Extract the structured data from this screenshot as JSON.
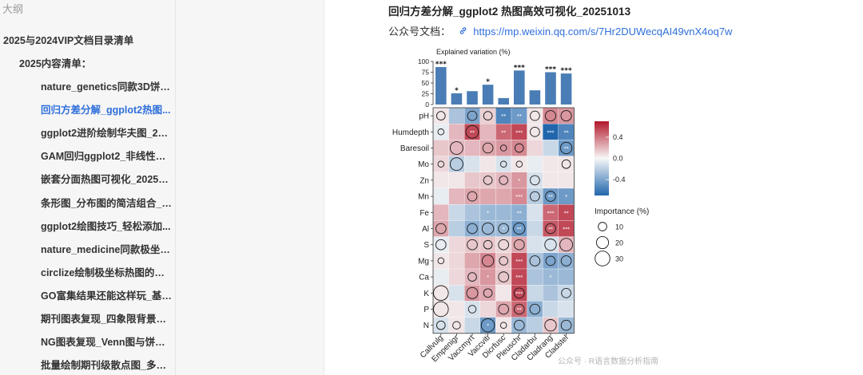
{
  "sidebar": {
    "outline_label": "大纲",
    "section": "2025与2024VIP文档目录清单",
    "subsection": "2025内容清单：",
    "items": [
      "nature_genetics同款3D饼图...",
      "回归方差分解_ggplot2热图...",
      "ggplot2进阶绘制华夫图_202...",
      "GAM回归ggplot2_非线性趋...",
      "嵌套分面热图可视化_202510...",
      "条形图_分布图的简洁组合_2...",
      "ggplot2绘图技巧_轻松添加...",
      "nature_medicine同款极坐标...",
      "circlize绘制极坐标热图的通...",
      "GO富集结果还能这样玩_基因...",
      "期刊图表复现_四象限背景散...",
      "NG图表复现_Venn图与饼图...",
      "批量绘制期刊级散点图_多元..."
    ],
    "active_index": 1
  },
  "doc": {
    "title": "回归方差分解_ggplot2 热图高效可视化_20251013",
    "link_label": "公众号文档：",
    "link_icon": "link-icon",
    "link_url": "https://mp.weixin.qq.com/s/7Hr2DUWecqAI49vnX4oq7w",
    "watermark": "公众号 · R语言数据分析指南"
  },
  "colors": {
    "accent": "#2f6fdb",
    "bar": "#4a7db5",
    "neg": "#2166ac",
    "pos": "#b2182b"
  },
  "chart_data": {
    "type": "heatmap",
    "bar_title": "Explained variation (%)",
    "bar_ylim": [
      0,
      100
    ],
    "bar_yticks": [
      0,
      25,
      50,
      75,
      100
    ],
    "species": [
      "Callvulg",
      "Empenigr",
      "Vaccmyrt",
      "Vaccviti",
      "Dicrfusc",
      "Pleuschr",
      "Cladarbu",
      "Cladrang",
      "Cladstel"
    ],
    "bar_values": [
      87,
      26,
      31,
      46,
      15,
      79,
      33,
      75,
      72
    ],
    "bar_sig": [
      "***",
      "*",
      "",
      "*",
      "",
      "***",
      "",
      "***",
      "***"
    ],
    "variables": [
      "pH",
      "Humdepth",
      "Baresoil",
      "Mo",
      "Zn",
      "Mn",
      "Fe",
      "Al",
      "S",
      "Mg",
      "Ca",
      "K",
      "P",
      "N"
    ],
    "correlation": [
      [
        0.05,
        -0.25,
        -0.4,
        0.12,
        -0.55,
        -0.45,
        0.05,
        0.35,
        0.3
      ],
      [
        -0.05,
        0.2,
        0.55,
        0.2,
        0.45,
        0.55,
        0.05,
        -0.7,
        -0.55
      ],
      [
        0.15,
        0.2,
        0.2,
        0.25,
        0.3,
        0.35,
        0.1,
        -0.15,
        -0.45
      ],
      [
        0.1,
        -0.2,
        -0.1,
        0.05,
        -0.1,
        0.05,
        -0.05,
        0.05,
        0.05
      ],
      [
        0.05,
        0.05,
        0.15,
        0.15,
        0.2,
        0.3,
        -0.1,
        0.05,
        0.05
      ],
      [
        -0.05,
        0.2,
        0.25,
        0.25,
        0.25,
        0.35,
        -0.2,
        -0.45,
        -0.45
      ],
      [
        0.2,
        -0.15,
        -0.25,
        -0.3,
        -0.3,
        -0.35,
        -0.1,
        0.45,
        0.55
      ],
      [
        0.25,
        -0.2,
        -0.35,
        -0.3,
        -0.3,
        -0.45,
        -0.15,
        0.5,
        0.55
      ],
      [
        -0.05,
        0.1,
        0.15,
        0.15,
        0.1,
        0.25,
        -0.1,
        -0.1,
        0.2
      ],
      [
        0.05,
        0.1,
        0.25,
        0.35,
        0.15,
        0.55,
        -0.25,
        -0.4,
        -0.35
      ],
      [
        -0.05,
        0.1,
        0.2,
        0.3,
        0.15,
        0.55,
        -0.25,
        -0.3,
        -0.3
      ],
      [
        0.05,
        -0.1,
        0.3,
        0.25,
        0.05,
        0.55,
        -0.15,
        -0.25,
        -0.15
      ],
      [
        0.05,
        0.05,
        -0.1,
        0.1,
        0.25,
        0.45,
        -0.35,
        -0.15,
        -0.1
      ],
      [
        -0.1,
        0.05,
        -0.15,
        -0.45,
        0.05,
        -0.3,
        -0.2,
        0.15,
        -0.3
      ]
    ],
    "importance": [
      [
        10,
        0,
        12,
        10,
        0,
        0,
        12,
        15,
        15
      ],
      [
        5,
        0,
        22,
        0,
        0,
        0,
        12,
        0,
        0
      ],
      [
        0,
        22,
        0,
        14,
        5,
        10,
        0,
        0,
        18
      ],
      [
        5,
        22,
        0,
        0,
        5,
        5,
        0,
        0,
        10
      ],
      [
        0,
        0,
        0,
        10,
        10,
        0,
        12,
        0,
        0
      ],
      [
        0,
        0,
        12,
        0,
        0,
        0,
        12,
        14,
        0
      ],
      [
        0,
        0,
        0,
        0,
        0,
        0,
        0,
        0,
        0
      ],
      [
        14,
        0,
        14,
        18,
        14,
        18,
        0,
        14,
        0
      ],
      [
        14,
        0,
        14,
        10,
        14,
        14,
        0,
        18,
        22
      ],
      [
        5,
        0,
        0,
        18,
        10,
        0,
        14,
        12,
        14
      ],
      [
        0,
        0,
        10,
        0,
        14,
        0,
        0,
        0,
        0
      ],
      [
        30,
        0,
        17,
        10,
        0,
        14,
        0,
        0,
        12
      ],
      [
        30,
        0,
        8,
        0,
        14,
        14,
        14,
        0,
        0
      ],
      [
        10,
        8,
        0,
        24,
        5,
        14,
        0,
        18,
        14
      ]
    ],
    "stars": [
      [
        "",
        "",
        "",
        "",
        "**",
        "**",
        "",
        "",
        ""
      ],
      [
        "",
        "",
        "**",
        "",
        "**",
        "***",
        "",
        "***",
        "**"
      ],
      [
        "",
        "",
        "",
        "",
        "",
        "",
        "",
        "",
        "**"
      ],
      [
        "",
        "",
        "",
        "",
        "",
        "",
        "",
        "",
        ""
      ],
      [
        "",
        "",
        "",
        "",
        "",
        "*",
        "",
        "",
        ""
      ],
      [
        "",
        "",
        "",
        "",
        "",
        "***",
        "",
        "**",
        "*"
      ],
      [
        "",
        "",
        "",
        "*",
        "",
        "**",
        "",
        "***",
        "**"
      ],
      [
        "",
        "",
        "",
        "",
        "*",
        "**",
        "",
        "**",
        "***"
      ],
      [
        "",
        "",
        "",
        "",
        "",
        "",
        "",
        "",
        ""
      ],
      [
        "",
        "",
        "",
        "",
        "",
        "***",
        "",
        "",
        ""
      ],
      [
        "",
        "",
        "",
        "*",
        "",
        "***",
        "",
        "*",
        ""
      ],
      [
        "",
        "",
        "",
        "",
        "",
        "***",
        "",
        "",
        ""
      ],
      [
        "",
        "",
        "",
        "",
        "",
        "**",
        "",
        "",
        ""
      ],
      [
        "",
        "",
        "",
        "*",
        "",
        "",
        "",
        "",
        ""
      ]
    ],
    "colorbar": {
      "ticks": [
        0.4,
        0.0,
        -0.4
      ],
      "tick_labels": [
        "0.4",
        "0.0",
        "-0.4"
      ],
      "range": [
        -0.7,
        0.7
      ]
    },
    "importance_legend": {
      "title": "Importance (%)",
      "values": [
        10,
        20,
        30
      ],
      "labels": [
        "10",
        "20",
        "30"
      ]
    }
  }
}
